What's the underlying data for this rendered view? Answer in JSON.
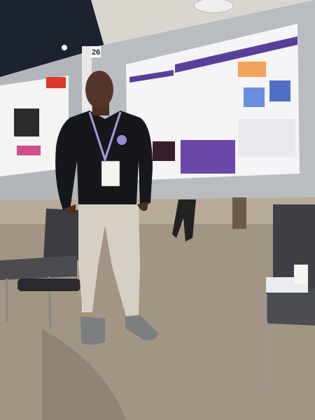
{
  "board_number": "26"
}
